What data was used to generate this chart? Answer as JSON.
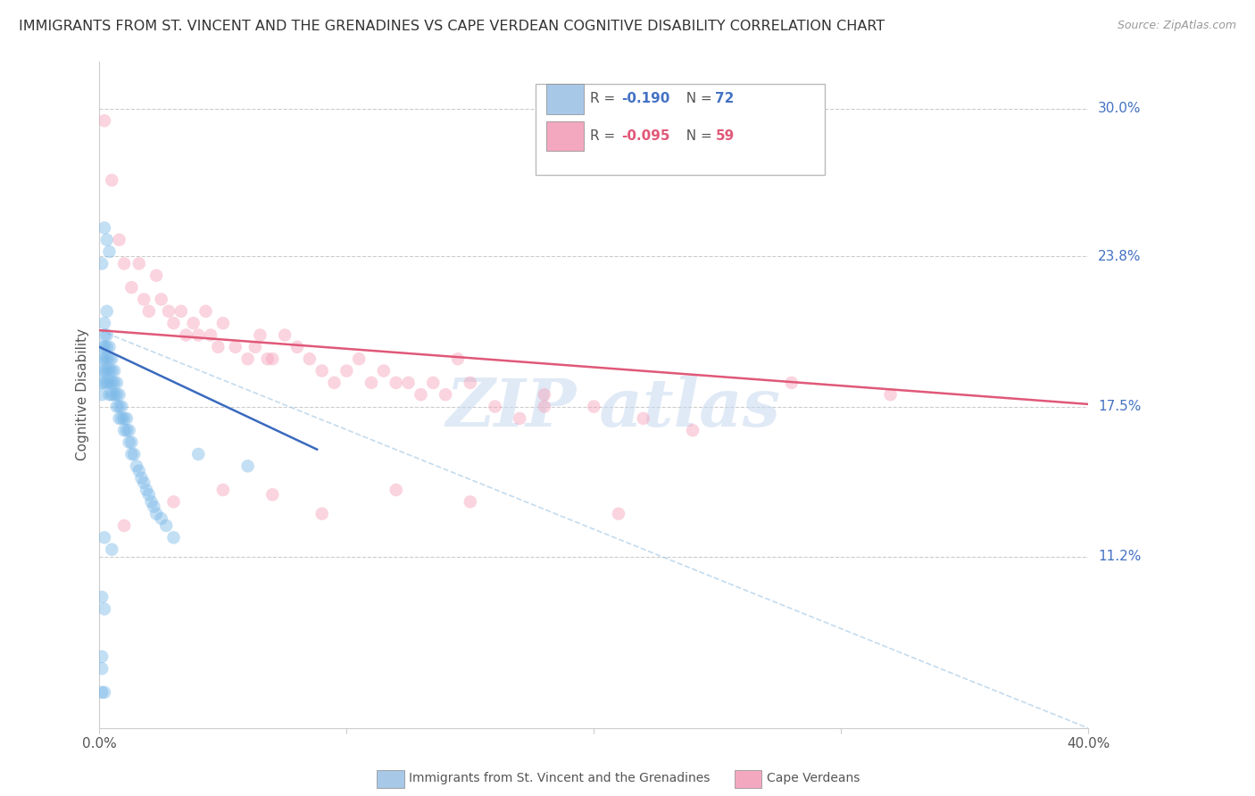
{
  "title": "IMMIGRANTS FROM ST. VINCENT AND THE GRENADINES VS CAPE VERDEAN COGNITIVE DISABILITY CORRELATION CHART",
  "source": "Source: ZipAtlas.com",
  "ylabel": "Cognitive Disability",
  "yticks": [
    "30.0%",
    "23.8%",
    "17.5%",
    "11.2%"
  ],
  "ytick_vals": [
    0.3,
    0.238,
    0.175,
    0.112
  ],
  "xlim": [
    0.0,
    0.4
  ],
  "ylim": [
    0.04,
    0.32
  ],
  "legend_labels_bottom": [
    "Immigrants from St. Vincent and the Grenadines",
    "Cape Verdeans"
  ],
  "blue_scatter_x": [
    0.001,
    0.001,
    0.001,
    0.001,
    0.001,
    0.002,
    0.002,
    0.002,
    0.002,
    0.002,
    0.002,
    0.003,
    0.003,
    0.003,
    0.003,
    0.003,
    0.003,
    0.004,
    0.004,
    0.004,
    0.004,
    0.004,
    0.005,
    0.005,
    0.005,
    0.005,
    0.006,
    0.006,
    0.006,
    0.007,
    0.007,
    0.007,
    0.008,
    0.008,
    0.008,
    0.009,
    0.009,
    0.01,
    0.01,
    0.011,
    0.011,
    0.012,
    0.012,
    0.013,
    0.013,
    0.014,
    0.015,
    0.016,
    0.017,
    0.018,
    0.019,
    0.02,
    0.021,
    0.022,
    0.023,
    0.025,
    0.027,
    0.03,
    0.002,
    0.003,
    0.004,
    0.001,
    0.002,
    0.005,
    0.001,
    0.002,
    0.001,
    0.001,
    0.002,
    0.04,
    0.06,
    0.001
  ],
  "blue_scatter_y": [
    0.2,
    0.195,
    0.19,
    0.185,
    0.18,
    0.21,
    0.205,
    0.2,
    0.195,
    0.19,
    0.185,
    0.215,
    0.205,
    0.2,
    0.195,
    0.19,
    0.185,
    0.2,
    0.195,
    0.19,
    0.185,
    0.18,
    0.195,
    0.19,
    0.185,
    0.18,
    0.19,
    0.185,
    0.18,
    0.185,
    0.18,
    0.175,
    0.18,
    0.175,
    0.17,
    0.175,
    0.17,
    0.17,
    0.165,
    0.17,
    0.165,
    0.165,
    0.16,
    0.16,
    0.155,
    0.155,
    0.15,
    0.148,
    0.145,
    0.143,
    0.14,
    0.138,
    0.135,
    0.133,
    0.13,
    0.128,
    0.125,
    0.12,
    0.25,
    0.245,
    0.24,
    0.235,
    0.12,
    0.115,
    0.095,
    0.09,
    0.07,
    0.065,
    0.055,
    0.155,
    0.15,
    0.055
  ],
  "pink_scatter_x": [
    0.002,
    0.005,
    0.008,
    0.01,
    0.013,
    0.016,
    0.018,
    0.02,
    0.023,
    0.025,
    0.028,
    0.03,
    0.033,
    0.035,
    0.038,
    0.04,
    0.043,
    0.045,
    0.048,
    0.05,
    0.055,
    0.06,
    0.063,
    0.065,
    0.068,
    0.07,
    0.075,
    0.08,
    0.085,
    0.09,
    0.095,
    0.1,
    0.105,
    0.11,
    0.115,
    0.12,
    0.125,
    0.13,
    0.135,
    0.14,
    0.145,
    0.15,
    0.16,
    0.17,
    0.18,
    0.2,
    0.22,
    0.24,
    0.28,
    0.32,
    0.01,
    0.03,
    0.05,
    0.07,
    0.09,
    0.12,
    0.15,
    0.18,
    0.21
  ],
  "pink_scatter_y": [
    0.295,
    0.27,
    0.245,
    0.235,
    0.225,
    0.235,
    0.22,
    0.215,
    0.23,
    0.22,
    0.215,
    0.21,
    0.215,
    0.205,
    0.21,
    0.205,
    0.215,
    0.205,
    0.2,
    0.21,
    0.2,
    0.195,
    0.2,
    0.205,
    0.195,
    0.195,
    0.205,
    0.2,
    0.195,
    0.19,
    0.185,
    0.19,
    0.195,
    0.185,
    0.19,
    0.185,
    0.185,
    0.18,
    0.185,
    0.18,
    0.195,
    0.185,
    0.175,
    0.17,
    0.18,
    0.175,
    0.17,
    0.165,
    0.185,
    0.18,
    0.125,
    0.135,
    0.14,
    0.138,
    0.13,
    0.14,
    0.135,
    0.175,
    0.13
  ],
  "blue_line_x": [
    0.0,
    0.088
  ],
  "blue_line_y": [
    0.2,
    0.157
  ],
  "pink_line_x": [
    0.0,
    0.4
  ],
  "pink_line_y": [
    0.207,
    0.176
  ],
  "diag_line_x": [
    0.0,
    0.4
  ],
  "diag_line_y": [
    0.207,
    0.04
  ],
  "scatter_size": 110,
  "scatter_alpha": 0.45,
  "line_width": 1.8
}
